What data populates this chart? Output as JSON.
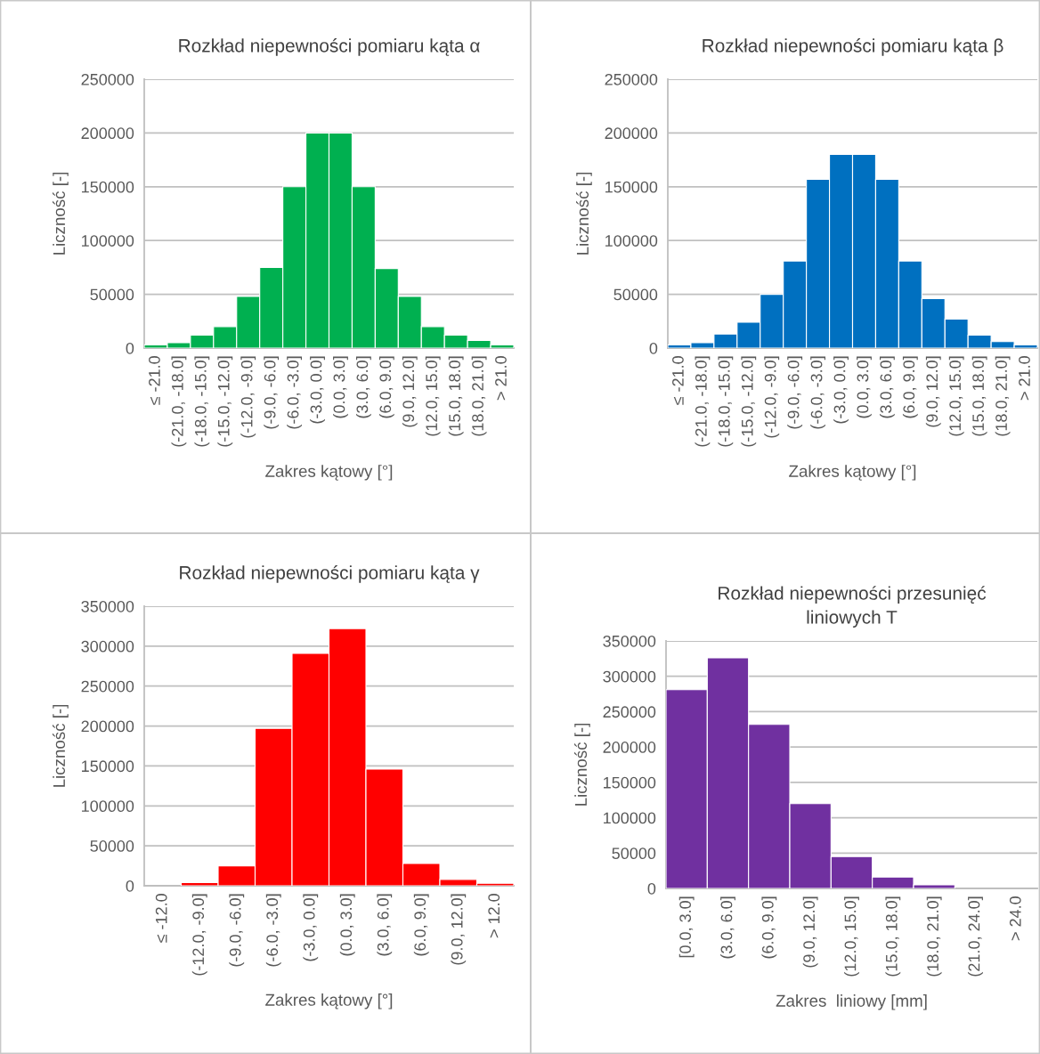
{
  "chart_data": [
    {
      "type": "bar",
      "title": "Rozkład niepewności pomiaru kąta α",
      "xlabel": "Zakres kątowy [°]",
      "ylabel": "Liczność [-]",
      "categories": [
        "≤ -21.0",
        "(-21.0, -18.0]",
        "(-18.0, -15.0]",
        "(-15.0, -12.0]",
        "(-12.0, -9.0]",
        "(-9.0, -6.0]",
        "(-6.0, -3.0]",
        "(-3.0, 0.0]",
        "(0.0, 3.0]",
        "(3.0, 6.0]",
        "(6.0, 9.0]",
        "(9.0, 12.0]",
        "(12.0, 15.0]",
        "(15.0, 18.0]",
        "(18.0, 21.0]",
        "> 21.0"
      ],
      "values": [
        3000,
        5000,
        12000,
        20000,
        48000,
        75000,
        150000,
        200000,
        200000,
        150000,
        74000,
        48000,
        20000,
        12000,
        7000,
        3000
      ],
      "color": "#00b050",
      "ylim": [
        0,
        250000
      ],
      "yticks": [
        0,
        50000,
        100000,
        150000,
        200000,
        250000
      ],
      "grid": "y"
    },
    {
      "type": "bar",
      "title": "Rozkład niepewności pomiaru kąta β",
      "xlabel": "Zakres kątowy [°]",
      "ylabel": "Liczność [-]",
      "categories": [
        "≤ -21.0",
        "(-21.0, -18.0]",
        "(-18.0, -15.0]",
        "(-15.0, -12.0]",
        "(-12.0, -9.0]",
        "(-9.0, -6.0]",
        "(-6.0, -3.0]",
        "(-3.0, 0.0]",
        "(0.0, 3.0]",
        "(3.0, 6.0]",
        "(6.0, 9.0]",
        "(9.0, 12.0]",
        "(12.0, 15.0]",
        "(15.0, 18.0]",
        "(18.0, 21.0]",
        "> 21.0"
      ],
      "values": [
        3000,
        5000,
        13000,
        24000,
        50000,
        81000,
        157000,
        180000,
        180000,
        157000,
        81000,
        46000,
        27000,
        12000,
        6000,
        3000
      ],
      "color": "#0070c0",
      "ylim": [
        0,
        250000
      ],
      "yticks": [
        0,
        50000,
        100000,
        150000,
        200000,
        250000
      ],
      "grid": "y"
    },
    {
      "type": "bar",
      "title": "Rozkład niepewności pomiaru kąta γ",
      "xlabel": "Zakres kątowy [°]",
      "ylabel": "Liczność [-]",
      "categories": [
        "≤ -12.0",
        "(-12.0, -9.0]",
        "(-9.0, -6.0]",
        "(-6.0, -3.0]",
        "(-3.0, 0.0]",
        "(0.0, 3.0]",
        "(3.0, 6.0]",
        "(6.0, 9.0]",
        "(9.0, 12.0]",
        "> 12.0"
      ],
      "values": [
        0,
        4000,
        25000,
        197000,
        291000,
        322000,
        146000,
        28000,
        8000,
        3000
      ],
      "color": "#ff0000",
      "ylim": [
        0,
        350000
      ],
      "yticks": [
        0,
        50000,
        100000,
        150000,
        200000,
        250000,
        300000,
        350000
      ],
      "grid": "y"
    },
    {
      "type": "bar",
      "title": "Rozkład niepewności przesunięć\nliniowych T",
      "xlabel": "Zakres  liniowy [mm]",
      "ylabel": "Liczność [-]",
      "categories": [
        "[0.0, 3.0]",
        "(3.0, 6.0]",
        "(6.0, 9.0]",
        "(9.0, 12.0]",
        "(12.0, 15.0]",
        "(15.0, 18.0]",
        "(18.0, 21.0]",
        "(21.0, 24.0]",
        "> 24.0"
      ],
      "values": [
        281000,
        326000,
        232000,
        120000,
        45000,
        16000,
        5000,
        0,
        0
      ],
      "color": "#7030a0",
      "ylim": [
        0,
        350000
      ],
      "yticks": [
        0,
        50000,
        100000,
        150000,
        200000,
        250000,
        300000,
        350000
      ],
      "grid": "y"
    }
  ]
}
